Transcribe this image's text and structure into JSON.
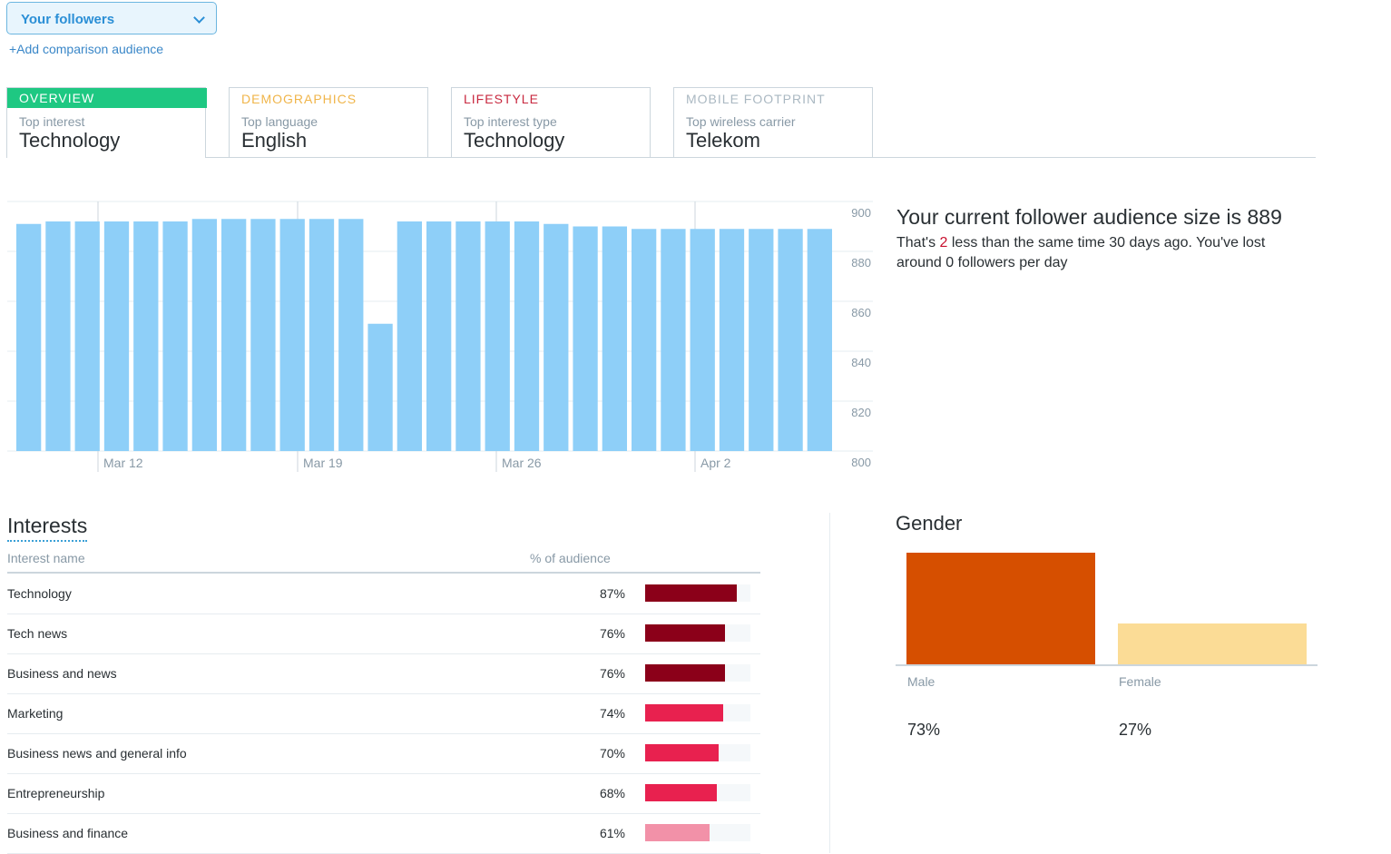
{
  "audience_select": {
    "label": "Your followers",
    "icon": "chevron-down-icon"
  },
  "add_comparison": "+Add comparison audience",
  "tabs": [
    {
      "title": "OVERVIEW",
      "subtitle": "Top interest",
      "value": "Technology",
      "color": "#1ec882",
      "active": true
    },
    {
      "title": "DEMOGRAPHICS",
      "subtitle": "Top language",
      "value": "English",
      "color": "#f0b54a"
    },
    {
      "title": "LIFESTYLE",
      "subtitle": "Top interest type",
      "value": "Technology",
      "color": "#c8283f"
    },
    {
      "title": "MOBILE FOOTPRINT",
      "subtitle": "Top wireless carrier",
      "value": "Telekom",
      "color": "#aab8c2"
    }
  ],
  "chart_data": {
    "type": "bar",
    "title": "Follower audience size",
    "values": [
      891,
      892,
      892,
      892,
      892,
      892,
      893,
      893,
      893,
      893,
      893,
      893,
      851,
      892,
      892,
      892,
      892,
      892,
      891,
      890,
      890,
      889,
      889,
      889,
      889,
      889,
      889,
      889
    ],
    "x_tick_labels": [
      "Mar 12",
      "Mar 19",
      "Mar 26",
      "Apr 2"
    ],
    "y_tick_labels": [
      "900",
      "880",
      "860",
      "840",
      "820",
      "800"
    ],
    "ylim": [
      800,
      900
    ],
    "bar_color": "#8ecff8"
  },
  "summary": {
    "title": "Your current follower audience size is 889",
    "desc_pre": "That's ",
    "desc_num": "2",
    "desc_post": " less than the same time 30 days ago. You've lost around 0 followers per day"
  },
  "interests": {
    "title": "Interests",
    "col_name": "Interest name",
    "col_pct": "% of audience",
    "rows": [
      {
        "name": "Technology",
        "pct": "87%",
        "value": 87,
        "color": "#8b0019"
      },
      {
        "name": "Tech news",
        "pct": "76%",
        "value": 76,
        "color": "#8b0019"
      },
      {
        "name": "Business and news",
        "pct": "76%",
        "value": 76,
        "color": "#8b0019"
      },
      {
        "name": "Marketing",
        "pct": "74%",
        "value": 74,
        "color": "#e8214f"
      },
      {
        "name": "Business news and general info",
        "pct": "70%",
        "value": 70,
        "color": "#e8214f"
      },
      {
        "name": "Entrepreneurship",
        "pct": "68%",
        "value": 68,
        "color": "#e8214f"
      },
      {
        "name": "Business and finance",
        "pct": "61%",
        "value": 61,
        "color": "#f291a8"
      }
    ]
  },
  "gender": {
    "title": "Gender",
    "items": [
      {
        "label": "Male",
        "pct": "73%",
        "value": 73,
        "color": "#d64f00"
      },
      {
        "label": "Female",
        "pct": "27%",
        "value": 27,
        "color": "#fbdc96"
      }
    ]
  }
}
